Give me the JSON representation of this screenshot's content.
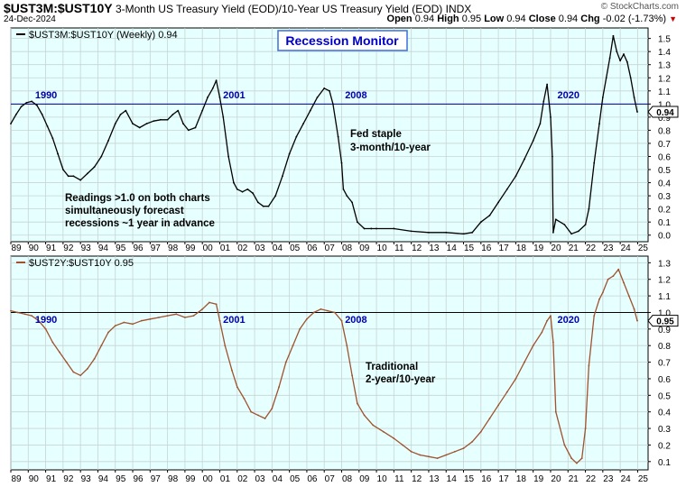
{
  "header": {
    "symbol": "$UST3M:$UST10Y",
    "description": "3-Month US Treasury Yield (EOD)/10-Year US Treasury Yield (EOD)",
    "exchange": "INDX",
    "watermark": "© StockCharts.com",
    "date": "24-Dec-2024",
    "open_label": "Open",
    "open": "0.94",
    "high_label": "High",
    "high": "0.95",
    "low_label": "Low",
    "low": "0.94",
    "close_label": "Close",
    "close": "0.94",
    "chg_label": "Chg",
    "chg": "-0.02 (-1.73%)",
    "chg_icon": "triangle-down-icon",
    "chg_color": "#cc0000"
  },
  "colors": {
    "background": "#e6ffff",
    "grid": "#c8d4d4",
    "top_line": "#000000",
    "bottom_line": "#a0522d",
    "reference_line": "#000080",
    "bottom_reference_line": "#000000",
    "title_border": "#3f6fd8",
    "year_label": "#0000b0"
  },
  "chart_data": [
    {
      "type": "line",
      "panel": "top",
      "legend": "$UST3M:$UST10Y (Weekly) 0.94",
      "title": "Recession Monitor",
      "last_value": "0.94",
      "x_tick_labels": [
        "89",
        "90",
        "91",
        "92",
        "93",
        "94",
        "95",
        "96",
        "97",
        "98",
        "99",
        "00",
        "01",
        "02",
        "03",
        "04",
        "05",
        "06",
        "07",
        "08",
        "09",
        "10",
        "11",
        "12",
        "13",
        "14",
        "15",
        "16",
        "17",
        "18",
        "19",
        "20",
        "21",
        "22",
        "23",
        "24",
        "25"
      ],
      "y_tick_labels": [
        "0.0",
        "0.1",
        "0.2",
        "0.3",
        "0.4",
        "0.5",
        "0.6",
        "0.7",
        "0.8",
        "0.9",
        "1.0",
        "1.1",
        "1.2",
        "1.3",
        "1.4",
        "1.5"
      ],
      "ylim": [
        -0.05,
        1.58
      ],
      "xlim": [
        1989.0,
        2025.6
      ],
      "reference_line": 1.0,
      "grid": true,
      "year_labels": [
        "1990",
        "2001",
        "2008",
        "2020"
      ],
      "annotations": [
        [
          "Fed staple",
          "3-month/10-year"
        ],
        [
          "Readings >1.0 on both charts",
          "simultaneously forecast",
          "recessions ~1 year in advance"
        ]
      ],
      "x": [
        1989.0,
        1989.3,
        1989.6,
        1989.9,
        1990.2,
        1990.5,
        1990.8,
        1991.1,
        1991.4,
        1991.7,
        1992.0,
        1992.3,
        1992.6,
        1993.0,
        1993.4,
        1993.8,
        1994.2,
        1994.6,
        1995.0,
        1995.3,
        1995.6,
        1996.0,
        1996.4,
        1996.8,
        1997.2,
        1997.6,
        1998.0,
        1998.3,
        1998.6,
        1998.9,
        1999.2,
        1999.6,
        2000.0,
        2000.3,
        2000.6,
        2000.8,
        2001.0,
        2001.2,
        2001.5,
        2001.8,
        2002.0,
        2002.3,
        2002.6,
        2002.9,
        2003.2,
        2003.5,
        2003.8,
        2004.2,
        2004.6,
        2005.0,
        2005.4,
        2005.8,
        2006.2,
        2006.6,
        2007.0,
        2007.3,
        2007.5,
        2007.8,
        2008.0,
        2008.1,
        2008.3,
        2008.6,
        2008.9,
        2009.3,
        2009.7,
        2010.0,
        2011.0,
        2012.0,
        2013.0,
        2014.0,
        2015.0,
        2015.5,
        2016.0,
        2016.5,
        2017.0,
        2017.5,
        2018.0,
        2018.5,
        2019.0,
        2019.4,
        2019.6,
        2019.8,
        2020.0,
        2020.1,
        2020.15,
        2020.3,
        2020.8,
        2021.2,
        2021.6,
        2022.0,
        2022.2,
        2022.5,
        2022.8,
        2023.0,
        2023.2,
        2023.4,
        2023.6,
        2023.8,
        2024.0,
        2024.2,
        2024.4,
        2024.6,
        2024.8,
        2024.98
      ],
      "values": [
        0.85,
        0.92,
        0.98,
        1.01,
        1.02,
        0.99,
        0.92,
        0.83,
        0.74,
        0.62,
        0.5,
        0.45,
        0.45,
        0.42,
        0.47,
        0.52,
        0.6,
        0.72,
        0.85,
        0.92,
        0.95,
        0.85,
        0.82,
        0.85,
        0.87,
        0.88,
        0.88,
        0.92,
        0.95,
        0.85,
        0.8,
        0.82,
        0.95,
        1.05,
        1.12,
        1.18,
        1.05,
        0.9,
        0.6,
        0.4,
        0.35,
        0.33,
        0.35,
        0.32,
        0.25,
        0.22,
        0.22,
        0.3,
        0.45,
        0.62,
        0.75,
        0.85,
        0.95,
        1.05,
        1.12,
        1.1,
        1.0,
        0.75,
        0.55,
        0.35,
        0.3,
        0.25,
        0.1,
        0.05,
        0.05,
        0.05,
        0.05,
        0.03,
        0.02,
        0.02,
        0.01,
        0.02,
        0.1,
        0.15,
        0.25,
        0.35,
        0.45,
        0.58,
        0.72,
        0.85,
        1.02,
        1.15,
        0.9,
        0.6,
        0.02,
        0.12,
        0.08,
        0.01,
        0.03,
        0.08,
        0.2,
        0.55,
        0.85,
        1.05,
        1.2,
        1.35,
        1.52,
        1.4,
        1.33,
        1.38,
        1.32,
        1.2,
        1.05,
        0.94
      ]
    },
    {
      "type": "line",
      "panel": "bottom",
      "legend": "$UST2Y:$UST10Y 0.95",
      "last_value": "0.95",
      "x_tick_labels": [
        "89",
        "90",
        "91",
        "92",
        "93",
        "94",
        "95",
        "96",
        "97",
        "98",
        "99",
        "00",
        "01",
        "02",
        "03",
        "04",
        "05",
        "06",
        "07",
        "08",
        "09",
        "10",
        "11",
        "12",
        "13",
        "14",
        "15",
        "16",
        "17",
        "18",
        "19",
        "20",
        "21",
        "22",
        "23",
        "24",
        "25"
      ],
      "y_tick_labels": [
        "0.1",
        "0.2",
        "0.3",
        "0.4",
        "0.5",
        "0.6",
        "0.7",
        "0.8",
        "0.9",
        "1.0",
        "1.1",
        "1.2",
        "1.3"
      ],
      "ylim": [
        0.05,
        1.34
      ],
      "xlim": [
        1989.0,
        2025.6
      ],
      "reference_line": 1.0,
      "grid": true,
      "year_labels": [
        "1990",
        "2001",
        "2008",
        "2020"
      ],
      "annotations": [
        [
          "Traditional",
          "2-year/10-year"
        ]
      ],
      "x": [
        1989.0,
        1989.4,
        1989.8,
        1990.2,
        1990.6,
        1991.0,
        1991.4,
        1991.8,
        1992.2,
        1992.6,
        1993.0,
        1993.4,
        1993.8,
        1994.2,
        1994.6,
        1995.0,
        1995.5,
        1996.0,
        1996.5,
        1997.0,
        1997.5,
        1998.0,
        1998.5,
        1999.0,
        1999.5,
        2000.0,
        2000.4,
        2000.8,
        2001.0,
        2001.3,
        2001.7,
        2002.0,
        2002.4,
        2002.8,
        2003.2,
        2003.6,
        2004.0,
        2004.4,
        2004.8,
        2005.2,
        2005.6,
        2006.0,
        2006.4,
        2006.8,
        2007.2,
        2007.6,
        2008.0,
        2008.3,
        2008.6,
        2008.9,
        2009.3,
        2009.8,
        2010.4,
        2011.0,
        2011.5,
        2012.0,
        2012.5,
        2013.0,
        2013.5,
        2014.0,
        2014.5,
        2015.0,
        2015.5,
        2016.0,
        2016.5,
        2017.0,
        2017.5,
        2018.0,
        2018.5,
        2019.0,
        2019.5,
        2019.8,
        2020.0,
        2020.15,
        2020.3,
        2020.8,
        2021.2,
        2021.5,
        2021.8,
        2022.0,
        2022.2,
        2022.5,
        2022.8,
        2023.0,
        2023.3,
        2023.6,
        2023.9,
        2024.2,
        2024.5,
        2024.8,
        2024.98
      ],
      "values": [
        1.01,
        1.0,
        0.99,
        0.98,
        0.95,
        0.9,
        0.82,
        0.76,
        0.7,
        0.64,
        0.62,
        0.66,
        0.72,
        0.8,
        0.88,
        0.92,
        0.94,
        0.93,
        0.95,
        0.96,
        0.97,
        0.98,
        0.99,
        0.97,
        0.98,
        1.02,
        1.06,
        1.05,
        0.95,
        0.8,
        0.65,
        0.55,
        0.48,
        0.4,
        0.38,
        0.36,
        0.42,
        0.55,
        0.7,
        0.8,
        0.9,
        0.96,
        1.0,
        1.02,
        1.01,
        1.0,
        0.95,
        0.8,
        0.62,
        0.45,
        0.38,
        0.32,
        0.28,
        0.24,
        0.2,
        0.16,
        0.14,
        0.13,
        0.12,
        0.14,
        0.16,
        0.18,
        0.22,
        0.28,
        0.36,
        0.44,
        0.52,
        0.6,
        0.7,
        0.8,
        0.88,
        0.95,
        0.98,
        0.82,
        0.4,
        0.2,
        0.12,
        0.09,
        0.12,
        0.3,
        0.68,
        0.98,
        1.08,
        1.12,
        1.2,
        1.22,
        1.26,
        1.18,
        1.1,
        1.02,
        0.95
      ]
    }
  ]
}
